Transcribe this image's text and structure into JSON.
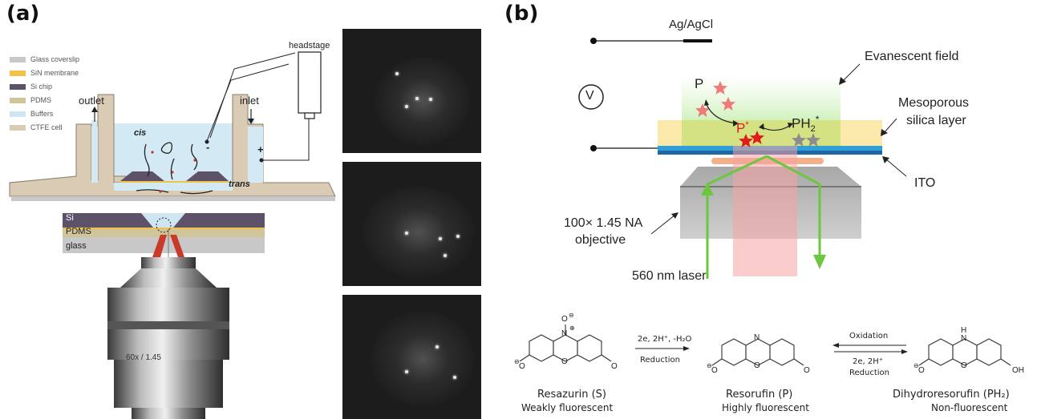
{
  "panel_a": {
    "label": "(a)",
    "legend": [
      {
        "text": "Glass coverslip",
        "color": "#c8c8c8"
      },
      {
        "text": "SiN membrane",
        "color": "#f2c24a"
      },
      {
        "text": "Si chip",
        "color": "#5e5268"
      },
      {
        "text": "PDMS",
        "color": "#cfc49a"
      },
      {
        "text": "Buffers",
        "color": "#cde6f2"
      },
      {
        "text": "CTFE cell",
        "color": "#d9cbb4"
      }
    ],
    "outlet": "outlet",
    "inlet": "inlet",
    "headstage": "headstage",
    "cis": "cis",
    "trans": "trans",
    "minus": "-",
    "plus": "+",
    "layers": {
      "si": "Si",
      "pdms": "PDMS",
      "glass": "glass"
    },
    "objective_label": "60x / 1.45"
  },
  "panel_b": {
    "label": "(b)",
    "ag_agcl": "Ag/AgCl",
    "voltage": "V",
    "evanescent": "Evanescent field",
    "mesoporous": "Mesoporous",
    "silica": "silica layer",
    "ito": "ITO",
    "objective": "100× 1.45 NA",
    "objective2": "objective",
    "laser": "560 nm laser",
    "p": "P",
    "pstar": "P",
    "ph2": "PH",
    "ph2_sub": "2",
    "star": "*",
    "reaction1_top": "2e, 2H⁺, -H₂O",
    "reaction1_bottom": "Reduction",
    "reaction2_top": "Oxidation",
    "reaction2_mid": "2e, 2H⁺",
    "reaction2_bottom": "Reduction",
    "compounds": [
      {
        "name": "Resazurin (S)",
        "desc": "Weakly fluorescent"
      },
      {
        "name": "Resorufin (P)",
        "desc": "Highly fluorescent"
      },
      {
        "name": "Dihydroresorufin (PH₂)",
        "desc": "Non-fluorescent"
      }
    ],
    "atoms": {
      "o": "O",
      "n": "N",
      "h": "H",
      "oh": "OH",
      "neg": "⊖",
      "pos": "⊕"
    }
  }
}
